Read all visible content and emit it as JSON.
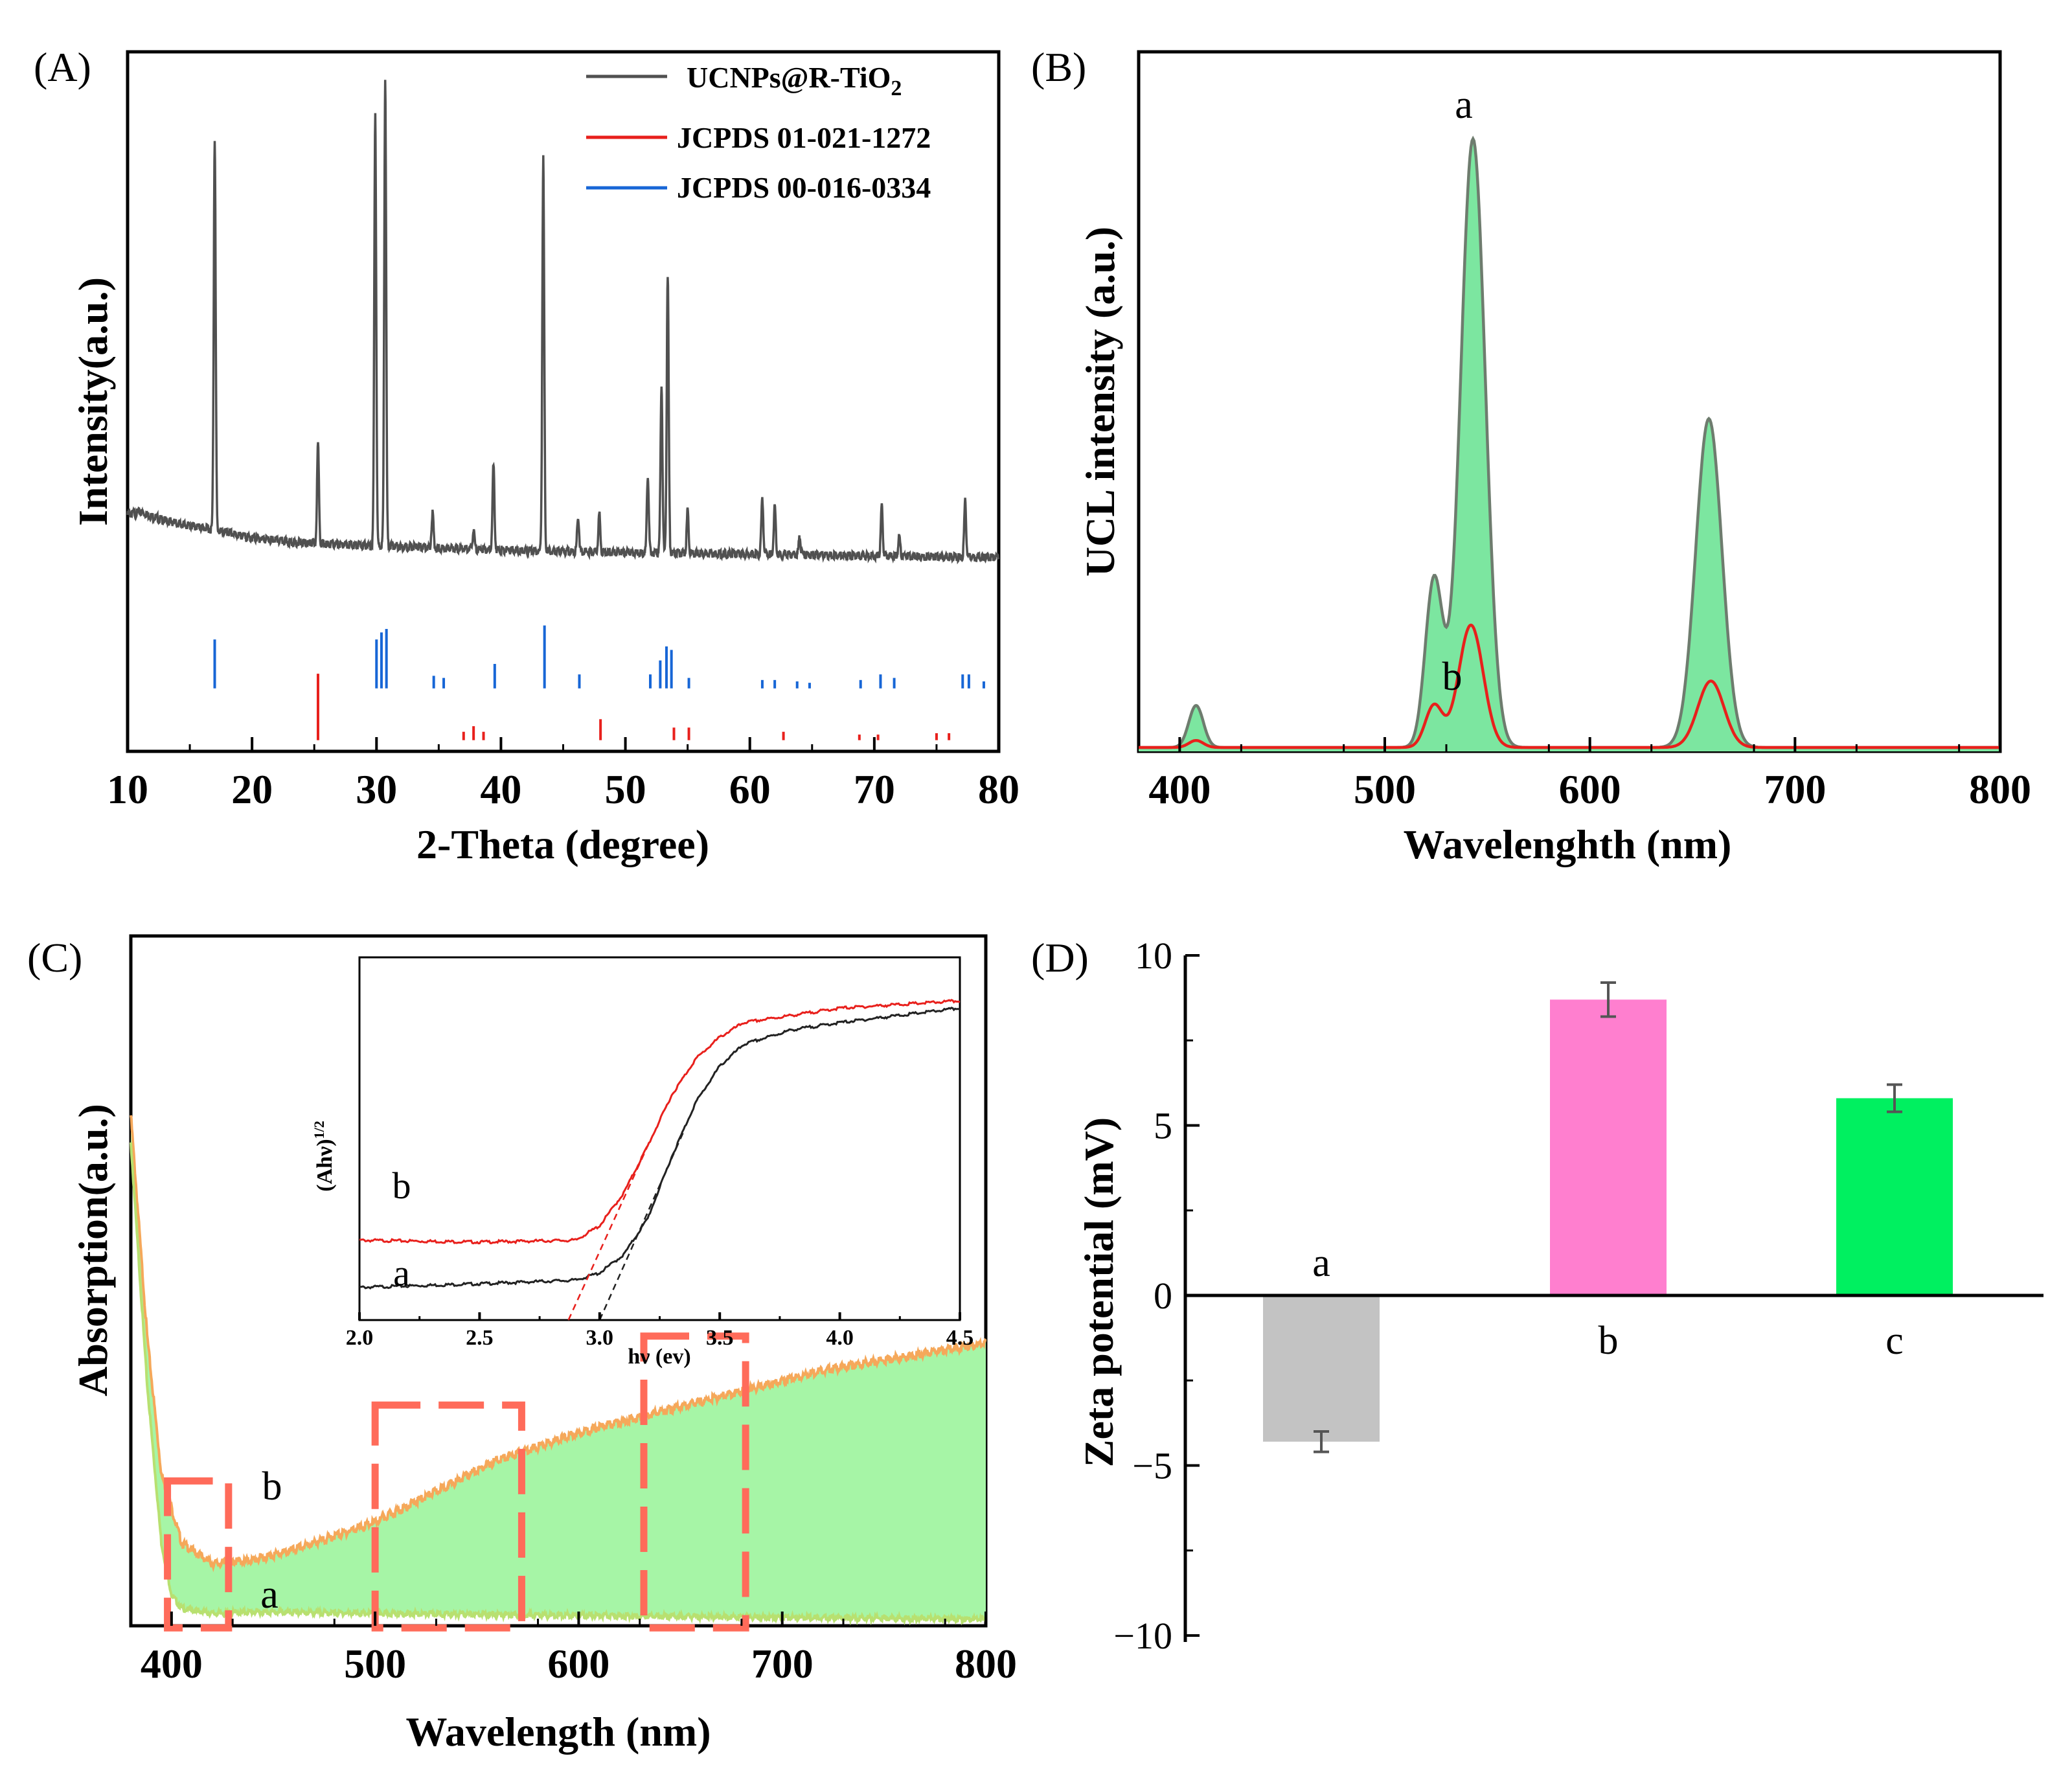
{
  "chart_data": [
    {
      "panel_label": "(A)",
      "type": "line",
      "xlabel": "2-Theta (degree)",
      "ylabel": "Intensity(a.u.)",
      "xlim": [
        10,
        80
      ],
      "ylim": [
        0,
        1
      ],
      "xticks": [
        "10",
        "20",
        "30",
        "40",
        "50",
        "60",
        "70",
        "80"
      ],
      "legend": [
        "UCNPs@R-TiO2",
        "JCPDS 01-021-1272",
        "JCPDS 00-016-0334"
      ],
      "legend_subscript": "2",
      "legend_colors": [
        "#505050",
        "#e8201c",
        "#1766d6"
      ],
      "baseline_points": [
        [
          10,
          0.338
        ],
        [
          11,
          0.342
        ],
        [
          12,
          0.336
        ],
        [
          13,
          0.33
        ],
        [
          14,
          0.326
        ],
        [
          15,
          0.322
        ],
        [
          16,
          0.32
        ],
        [
          20,
          0.305
        ],
        [
          24,
          0.298
        ],
        [
          28,
          0.295
        ],
        [
          32,
          0.293
        ],
        [
          36,
          0.29
        ],
        [
          40,
          0.288
        ],
        [
          44,
          0.286
        ],
        [
          48,
          0.285
        ],
        [
          52,
          0.284
        ],
        [
          56,
          0.283
        ],
        [
          60,
          0.282
        ],
        [
          64,
          0.281
        ],
        [
          68,
          0.28
        ],
        [
          72,
          0.279
        ],
        [
          76,
          0.278
        ],
        [
          80,
          0.277
        ]
      ],
      "peaks": [
        {
          "x": 17.0,
          "h": 0.56
        },
        {
          "x": 25.3,
          "h": 0.14
        },
        {
          "x": 29.9,
          "h": 0.62
        },
        {
          "x": 30.7,
          "h": 0.67
        },
        {
          "x": 34.5,
          "h": 0.05
        },
        {
          "x": 37.8,
          "h": 0.025
        },
        {
          "x": 39.4,
          "h": 0.12
        },
        {
          "x": 43.4,
          "h": 0.56
        },
        {
          "x": 46.2,
          "h": 0.05
        },
        {
          "x": 47.9,
          "h": 0.055
        },
        {
          "x": 51.8,
          "h": 0.11
        },
        {
          "x": 52.9,
          "h": 0.24
        },
        {
          "x": 53.4,
          "h": 0.4
        },
        {
          "x": 55.0,
          "h": 0.06
        },
        {
          "x": 61.0,
          "h": 0.08
        },
        {
          "x": 62.0,
          "h": 0.07
        },
        {
          "x": 64.0,
          "h": 0.025
        },
        {
          "x": 70.6,
          "h": 0.07
        },
        {
          "x": 72.0,
          "h": 0.03
        },
        {
          "x": 77.3,
          "h": 0.08
        }
      ],
      "ref_blue": [
        {
          "x": 17.0,
          "h": 0.07
        },
        {
          "x": 30.0,
          "h": 0.07
        },
        {
          "x": 30.4,
          "h": 0.08
        },
        {
          "x": 30.8,
          "h": 0.085
        },
        {
          "x": 34.6,
          "h": 0.018
        },
        {
          "x": 35.4,
          "h": 0.015
        },
        {
          "x": 39.5,
          "h": 0.035
        },
        {
          "x": 43.5,
          "h": 0.09
        },
        {
          "x": 46.3,
          "h": 0.02
        },
        {
          "x": 52.0,
          "h": 0.02
        },
        {
          "x": 52.8,
          "h": 0.04
        },
        {
          "x": 53.3,
          "h": 0.06
        },
        {
          "x": 53.7,
          "h": 0.055
        },
        {
          "x": 55.1,
          "h": 0.015
        },
        {
          "x": 61.0,
          "h": 0.012
        },
        {
          "x": 62.0,
          "h": 0.012
        },
        {
          "x": 63.8,
          "h": 0.01
        },
        {
          "x": 64.8,
          "h": 0.008
        },
        {
          "x": 68.9,
          "h": 0.012
        },
        {
          "x": 70.5,
          "h": 0.02
        },
        {
          "x": 71.6,
          "h": 0.015
        },
        {
          "x": 77.1,
          "h": 0.02
        },
        {
          "x": 77.6,
          "h": 0.02
        },
        {
          "x": 78.8,
          "h": 0.01
        }
      ],
      "ref_red": [
        {
          "x": 25.3,
          "h": 0.095
        },
        {
          "x": 37.0,
          "h": 0.012
        },
        {
          "x": 37.8,
          "h": 0.02
        },
        {
          "x": 38.6,
          "h": 0.012
        },
        {
          "x": 48.0,
          "h": 0.03
        },
        {
          "x": 53.9,
          "h": 0.018
        },
        {
          "x": 55.1,
          "h": 0.018
        },
        {
          "x": 62.7,
          "h": 0.012
        },
        {
          "x": 68.8,
          "h": 0.008
        },
        {
          "x": 70.3,
          "h": 0.008
        },
        {
          "x": 75.0,
          "h": 0.01
        },
        {
          "x": 76.0,
          "h": 0.01
        }
      ]
    },
    {
      "panel_label": "(B)",
      "type": "area",
      "xlabel": "Wavelenghth (nm)",
      "ylabel": "UCL intensity (a.u.)",
      "xlim": [
        380,
        800
      ],
      "ylim": [
        0,
        1
      ],
      "xticks": [
        "400",
        "500",
        "600",
        "700",
        "800"
      ],
      "series": [
        {
          "name": "a",
          "color": "#6e7c6e",
          "fill": "#7ce6a0",
          "peaks": [
            {
              "x": 408,
              "h": 0.06,
              "w": 5
            },
            {
              "x": 524,
              "h": 0.24,
              "w": 6
            },
            {
              "x": 543,
              "h": 0.87,
              "w": 8.5
            },
            {
              "x": 658,
              "h": 0.47,
              "w": 9
            }
          ]
        },
        {
          "name": "b",
          "color": "#e8201c",
          "peaks": [
            {
              "x": 408,
              "h": 0.01,
              "w": 5
            },
            {
              "x": 524,
              "h": 0.06,
              "w": 6
            },
            {
              "x": 542,
              "h": 0.175,
              "w": 8.5
            },
            {
              "x": 659,
              "h": 0.095,
              "w": 9
            }
          ]
        }
      ],
      "annotations": [
        "a",
        "b"
      ]
    },
    {
      "panel_label": "(C)",
      "type": "area",
      "xlabel": "Wavelength (nm)",
      "ylabel": "Absorption(a.u.)",
      "xlim": [
        380,
        800
      ],
      "ylim": [
        0,
        1
      ],
      "xticks": [
        "400",
        "500",
        "600",
        "700",
        "800"
      ],
      "curve_b": [
        [
          380,
          0.74
        ],
        [
          388,
          0.42
        ],
        [
          395,
          0.22
        ],
        [
          405,
          0.12
        ],
        [
          420,
          0.09
        ],
        [
          440,
          0.095
        ],
        [
          460,
          0.11
        ],
        [
          480,
          0.13
        ],
        [
          500,
          0.15
        ],
        [
          520,
          0.18
        ],
        [
          540,
          0.21
        ],
        [
          560,
          0.24
        ],
        [
          580,
          0.26
        ],
        [
          600,
          0.28
        ],
        [
          640,
          0.31
        ],
        [
          680,
          0.34
        ],
        [
          720,
          0.37
        ],
        [
          760,
          0.39
        ],
        [
          800,
          0.41
        ]
      ],
      "curve_a": [
        [
          380,
          0.7
        ],
        [
          388,
          0.35
        ],
        [
          395,
          0.12
        ],
        [
          400,
          0.045
        ],
        [
          405,
          0.025
        ],
        [
          420,
          0.018
        ],
        [
          440,
          0.02
        ],
        [
          500,
          0.018
        ],
        [
          600,
          0.015
        ],
        [
          700,
          0.012
        ],
        [
          800,
          0.01
        ]
      ],
      "annotations": [
        "a",
        "b"
      ],
      "highlight_boxes": [
        [
          398,
          428
        ],
        [
          500,
          572
        ],
        [
          632,
          682
        ]
      ],
      "inset": {
        "xlabel": "hν (ev)",
        "ylabel": "(Ahν)",
        "ylabel_sup": "1/2",
        "xlim": [
          2.0,
          4.5
        ],
        "xticks": [
          "2.0",
          "2.5",
          "3.0",
          "3.5",
          "4.0",
          "4.5"
        ],
        "annotations": [
          "a",
          "b"
        ],
        "curve_a": [
          [
            2.0,
            0.09
          ],
          [
            2.5,
            0.1
          ],
          [
            2.9,
            0.11
          ],
          [
            3.0,
            0.13
          ],
          [
            3.1,
            0.18
          ],
          [
            3.2,
            0.28
          ],
          [
            3.3,
            0.45
          ],
          [
            3.4,
            0.6
          ],
          [
            3.5,
            0.7
          ],
          [
            3.6,
            0.76
          ],
          [
            3.8,
            0.8
          ],
          [
            4.0,
            0.82
          ],
          [
            4.5,
            0.86
          ]
        ],
        "curve_b": [
          [
            2.0,
            0.22
          ],
          [
            2.5,
            0.215
          ],
          [
            2.9,
            0.22
          ],
          [
            3.0,
            0.26
          ],
          [
            3.1,
            0.35
          ],
          [
            3.2,
            0.48
          ],
          [
            3.3,
            0.62
          ],
          [
            3.4,
            0.72
          ],
          [
            3.5,
            0.78
          ],
          [
            3.6,
            0.82
          ],
          [
            3.8,
            0.84
          ],
          [
            4.0,
            0.86
          ],
          [
            4.5,
            0.88
          ]
        ],
        "tangent_a": [
          [
            3.0,
            0.0
          ],
          [
            3.35,
            0.52
          ]
        ],
        "tangent_b": [
          [
            2.87,
            0.0
          ],
          [
            3.2,
            0.48
          ]
        ]
      }
    },
    {
      "panel_label": "(D)",
      "type": "bar",
      "ylabel": "Zeta potential (mV)",
      "ylim": [
        -10,
        10
      ],
      "yticks": [
        "10",
        "5",
        "0",
        "−5",
        "−10"
      ],
      "categories": [
        "a",
        "b",
        "c"
      ],
      "values": [
        -4.3,
        8.7,
        5.8
      ],
      "errors": [
        0.3,
        0.5,
        0.4
      ],
      "colors": [
        "#c3c3c3",
        "#ff7fcf",
        "#00f060"
      ]
    }
  ]
}
